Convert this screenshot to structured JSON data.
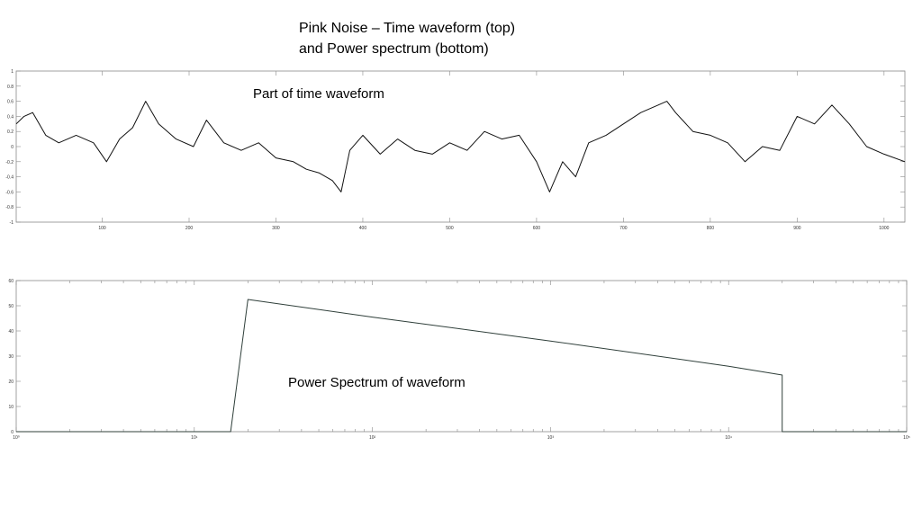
{
  "slide": {
    "title_line1": "Pink Noise – Time waveform (top)",
    "title_line2": "and Power spectrum (bottom)"
  },
  "annotations": {
    "time": "Part of time waveform",
    "spectrum": "Power Spectrum of waveform"
  },
  "chart_data": [
    {
      "type": "line",
      "title": "",
      "xlabel": "",
      "ylabel": "",
      "xlim": [
        1,
        1024
      ],
      "ylim": [
        -1,
        1
      ],
      "xticks": [
        100,
        200,
        300,
        400,
        500,
        600,
        700,
        800,
        900,
        1000
      ],
      "xtick_labels": [
        "100",
        "200",
        "300",
        "400",
        "500",
        "600",
        "700",
        "800",
        "900",
        "1000"
      ],
      "yticks": [
        -1,
        -0.8,
        -0.6,
        -0.4,
        -0.2,
        0,
        0.2,
        0.4,
        0.6,
        0.8,
        1
      ],
      "ytick_labels": [
        "-1",
        "-0.8",
        "-0.6",
        "-0.4",
        "-0.2",
        "0",
        "0.2",
        "0.4",
        "0.6",
        "0.8",
        "1"
      ],
      "grid": false,
      "series": [
        {
          "x": [
            1,
            10,
            20,
            35,
            50,
            70,
            90,
            105,
            120,
            135,
            150,
            165,
            185,
            205,
            220,
            240,
            260,
            280,
            300,
            320,
            335,
            350,
            365,
            375,
            385,
            400,
            420,
            440,
            460,
            480,
            500,
            520,
            540,
            560,
            580,
            600,
            615,
            630,
            645,
            660,
            680,
            700,
            720,
            740,
            750,
            760,
            780,
            800,
            820,
            840,
            860,
            880,
            900,
            920,
            940,
            960,
            980,
            1000,
            1024
          ],
          "y": [
            0.3,
            0.4,
            0.45,
            0.15,
            0.05,
            0.15,
            0.05,
            -0.2,
            0.1,
            0.25,
            0.6,
            0.3,
            0.1,
            0.0,
            0.35,
            0.05,
            -0.05,
            0.05,
            -0.15,
            -0.2,
            -0.3,
            -0.35,
            -0.45,
            -0.6,
            -0.05,
            0.15,
            -0.1,
            0.1,
            -0.05,
            -0.1,
            0.05,
            -0.05,
            0.2,
            0.1,
            0.15,
            -0.2,
            -0.6,
            -0.2,
            -0.4,
            0.05,
            0.15,
            0.3,
            0.45,
            0.55,
            0.6,
            0.45,
            0.2,
            0.15,
            0.05,
            -0.2,
            0.0,
            -0.05,
            0.4,
            0.3,
            0.55,
            0.3,
            0.0,
            -0.1,
            -0.2
          ]
        }
      ]
    },
    {
      "type": "line",
      "title": "",
      "xlabel": "",
      "ylabel": "",
      "xscale": "log",
      "xlim": [
        1,
        100000
      ],
      "ylim": [
        0,
        60
      ],
      "xticks": [
        1,
        10,
        100,
        1000,
        10000,
        100000
      ],
      "xtick_labels": [
        "10⁰",
        "10¹",
        "10²",
        "10³",
        "10⁴",
        "10⁵"
      ],
      "yticks": [
        0,
        10,
        20,
        30,
        40,
        50,
        60
      ],
      "ytick_labels": [
        "0",
        "10",
        "20",
        "30",
        "40",
        "50",
        "60"
      ],
      "grid": false,
      "series": [
        {
          "x": [
            1,
            16,
            20,
            100,
            1000,
            10000,
            20000,
            20000,
            100000
          ],
          "y": [
            0,
            0,
            52.5,
            45.5,
            36,
            26,
            22.5,
            0,
            0
          ]
        }
      ]
    }
  ]
}
